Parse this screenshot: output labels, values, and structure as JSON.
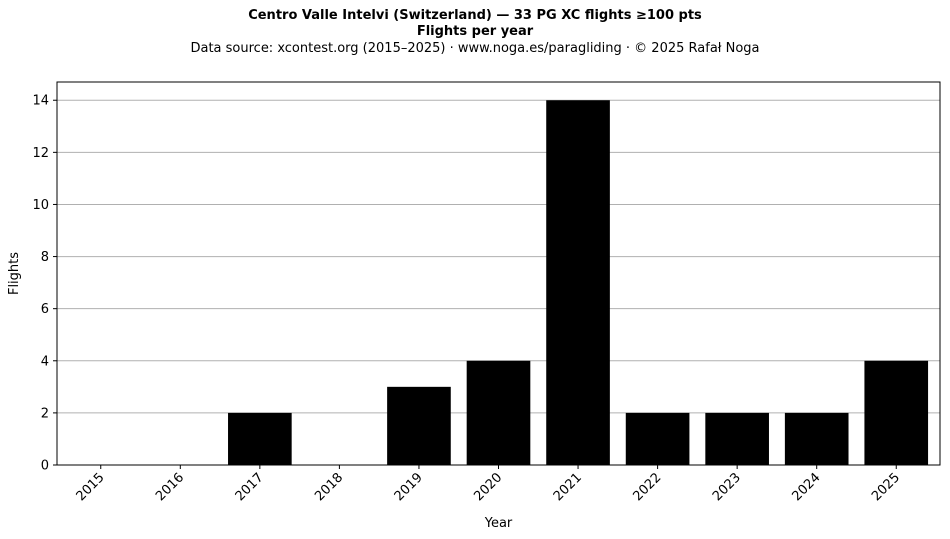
{
  "chart_data": {
    "type": "bar",
    "title": "Centro Valle Intelvi (Switzerland)  —  33 PG XC flights ≥100 pts",
    "title_line2": "Flights per year",
    "subtitle": "Data source: xcontest.org (2015–2025)  ·  www.noga.es/paragliding  ·  © 2025 Rafał Noga",
    "xlabel": "Year",
    "ylabel": "Flights",
    "categories": [
      "2015",
      "2016",
      "2017",
      "2018",
      "2019",
      "2020",
      "2021",
      "2022",
      "2023",
      "2024",
      "2025"
    ],
    "values": [
      0,
      0,
      2,
      0,
      3,
      4,
      14,
      2,
      2,
      2,
      4
    ],
    "ylim": [
      0,
      14.7
    ],
    "yticks": [
      0,
      2,
      4,
      6,
      8,
      10,
      12,
      14
    ],
    "grid": "horizontal",
    "bar_color": "#000000",
    "grid_color": "#b0b0b0"
  }
}
